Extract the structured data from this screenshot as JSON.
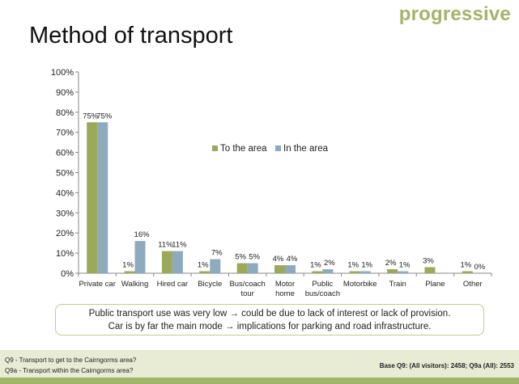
{
  "slide": {
    "logo": "progressive",
    "title": "Method of transport",
    "callout_line1": "Public transport use was very low → could be due to lack of interest or lack of provision.",
    "callout_line2": "Car is by far the main mode → implications for parking and road infrastructure.",
    "footer_q1": "Q9 - Transport to get to the Cairngorms area?",
    "footer_q2": "Q9a - Transport within the Cairngorms area?",
    "footer_base": "Base Q9: (All visitors): 2458; Q9a (All): 2553"
  },
  "chart_data": {
    "type": "bar",
    "categories": [
      "Private car",
      "Walking",
      "Hired car",
      "Bicycle",
      "Bus/coach\ntour",
      "Motor\nhome",
      "Public\nbus/coach",
      "Motorbike",
      "Train",
      "Plane",
      "Other"
    ],
    "series": [
      {
        "name": "To the area",
        "color": "#9aaa5a",
        "values": [
          75,
          1,
          11,
          1,
          5,
          4,
          1,
          1,
          2,
          3,
          1
        ],
        "labels": [
          "75%",
          "1%",
          "11%",
          "1%",
          "5%",
          "4%",
          "1%",
          "1%",
          "2%",
          "3%",
          "1%"
        ]
      },
      {
        "name": "In the area",
        "color": "#8fa9bd",
        "values": [
          75,
          16,
          11,
          7,
          5,
          4,
          2,
          1,
          1,
          null,
          0
        ],
        "labels": [
          "75%",
          "16%",
          "11%",
          "7%",
          "5%",
          "4%",
          "2%",
          "1%",
          "1%",
          "",
          "0%"
        ]
      }
    ],
    "ylim": [
      0,
      100
    ],
    "yticks": [
      "0%",
      "10%",
      "20%",
      "30%",
      "40%",
      "50%",
      "60%",
      "70%",
      "80%",
      "90%",
      "100%"
    ],
    "legend_position": "center-right",
    "grid": false
  }
}
